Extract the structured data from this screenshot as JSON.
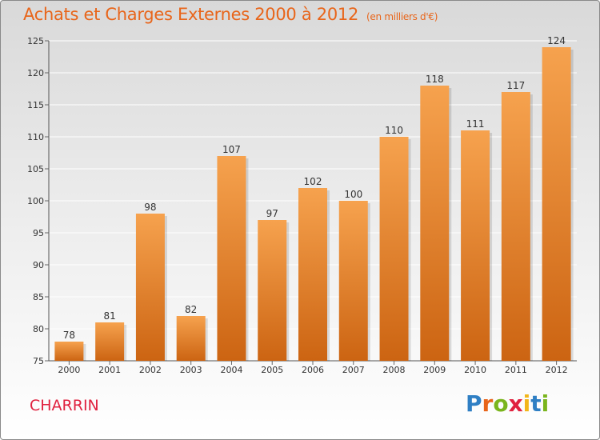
{
  "title": "Achats et Charges Externes 2000 à 2012",
  "unit": "(en milliers d'€)",
  "commune": "CHARRIN",
  "logo": {
    "letters": [
      {
        "ch": "P",
        "color": "#2f7fc4"
      },
      {
        "ch": "r",
        "color": "#e8651a"
      },
      {
        "ch": "o",
        "color": "#7ab51d"
      },
      {
        "ch": "x",
        "color": "#e0223f"
      },
      {
        "ch": "i",
        "color": "#f2b61a"
      },
      {
        "ch": "t",
        "color": "#2f7fc4"
      },
      {
        "ch": "i",
        "color": "#7ab51d"
      }
    ]
  },
  "colors": {
    "title": "#e8651a",
    "bar_top": "#f6a24e",
    "bar_bottom": "#cc6412",
    "commune": "#e0223f"
  },
  "chart_data": {
    "type": "bar",
    "categories": [
      "2000",
      "2001",
      "2002",
      "2003",
      "2004",
      "2005",
      "2006",
      "2007",
      "2008",
      "2009",
      "2010",
      "2011",
      "2012"
    ],
    "values": [
      78,
      81,
      98,
      82,
      107,
      97,
      102,
      100,
      110,
      118,
      111,
      117,
      124
    ],
    "title": "Achats et Charges Externes 2000 à 2012",
    "ylim": [
      75,
      125
    ],
    "yticks": [
      75,
      80,
      85,
      90,
      95,
      100,
      105,
      110,
      115,
      120,
      125
    ],
    "grid": true
  }
}
